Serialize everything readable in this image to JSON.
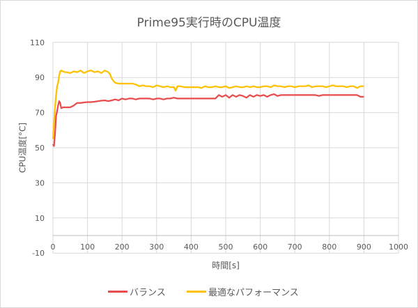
{
  "chart_data": {
    "type": "line",
    "title": "Prime95実行時のCPU温度",
    "xlabel": "時間[s]",
    "ylabel": "CPU温度[°C]",
    "xlim": [
      0,
      1000
    ],
    "ylim": [
      -10,
      110
    ],
    "x_ticks": [
      0,
      100,
      200,
      300,
      400,
      500,
      600,
      700,
      800,
      900,
      1000
    ],
    "y_ticks": [
      -10,
      10,
      30,
      50,
      70,
      90,
      110
    ],
    "x_axis_crosses_y": 0,
    "grid": true,
    "legend_position": "bottom",
    "series": [
      {
        "name": "バランス",
        "color": "#e84c4c",
        "x": [
          0,
          3,
          6,
          9,
          12,
          15,
          18,
          21,
          24,
          27,
          30,
          35,
          40,
          50,
          60,
          70,
          80,
          90,
          100,
          110,
          120,
          130,
          140,
          150,
          160,
          170,
          180,
          190,
          200,
          210,
          220,
          230,
          240,
          250,
          260,
          270,
          280,
          290,
          300,
          310,
          320,
          330,
          340,
          350,
          360,
          370,
          380,
          390,
          400,
          410,
          420,
          430,
          440,
          450,
          460,
          470,
          480,
          490,
          500,
          510,
          520,
          530,
          540,
          550,
          560,
          570,
          580,
          590,
          600,
          610,
          620,
          630,
          640,
          650,
          660,
          670,
          680,
          690,
          700,
          710,
          720,
          730,
          740,
          750,
          760,
          770,
          780,
          790,
          800,
          810,
          820,
          830,
          840,
          850,
          860,
          870,
          880,
          890,
          900
        ],
        "values": [
          52,
          51,
          58,
          68,
          71,
          74,
          76.5,
          75.5,
          72.5,
          72.8,
          73,
          73,
          73,
          73,
          74,
          75.5,
          75.5,
          75.8,
          76,
          76,
          76.2,
          76.5,
          76.8,
          77,
          76.5,
          77,
          77.5,
          77,
          78,
          77.5,
          78,
          78,
          77.5,
          78,
          78,
          78,
          78,
          77.5,
          78,
          78,
          77.5,
          78,
          78,
          78.5,
          78,
          78,
          78,
          78,
          78,
          78,
          78,
          78,
          78,
          78,
          78,
          78,
          80,
          79,
          80,
          78.5,
          80,
          79,
          80,
          79.5,
          78.5,
          80,
          79,
          80,
          79.5,
          80,
          79,
          80,
          80.5,
          79.5,
          80,
          80,
          80,
          80,
          80,
          80,
          80,
          80,
          80,
          80,
          80,
          79.5,
          80,
          80,
          80,
          80,
          80,
          80,
          80,
          80,
          80,
          80,
          80,
          79,
          79
        ]
      },
      {
        "name": "最適なパフォーマンス",
        "color": "#ffc000",
        "x": [
          0,
          3,
          6,
          9,
          12,
          15,
          18,
          21,
          24,
          27,
          30,
          35,
          40,
          50,
          60,
          70,
          80,
          90,
          100,
          110,
          120,
          130,
          140,
          150,
          160,
          165,
          170,
          175,
          180,
          190,
          200,
          210,
          220,
          230,
          240,
          250,
          260,
          270,
          280,
          290,
          300,
          310,
          320,
          330,
          340,
          350,
          355,
          360,
          370,
          380,
          390,
          400,
          410,
          420,
          430,
          440,
          450,
          460,
          470,
          480,
          490,
          500,
          510,
          520,
          530,
          540,
          550,
          560,
          570,
          580,
          590,
          600,
          610,
          620,
          630,
          640,
          650,
          660,
          670,
          680,
          690,
          700,
          710,
          720,
          730,
          740,
          750,
          760,
          770,
          780,
          790,
          800,
          810,
          820,
          830,
          840,
          850,
          860,
          870,
          880,
          890,
          900
        ],
        "values": [
          55,
          64,
          73,
          80,
          85,
          87,
          91,
          93.5,
          94,
          93.5,
          93.5,
          93,
          93,
          92.5,
          93.5,
          93,
          94,
          92.5,
          93.5,
          94,
          93,
          93.5,
          92.5,
          94,
          93,
          92,
          89.5,
          88,
          87,
          86.5,
          86.5,
          86.5,
          86.5,
          86.5,
          86,
          85,
          85.5,
          85,
          85,
          84.5,
          85.5,
          85,
          84.5,
          85,
          84.5,
          84.5,
          82.5,
          85,
          85,
          84.5,
          84.5,
          84.5,
          84.5,
          84.5,
          84,
          85,
          84.5,
          84.5,
          85,
          84.5,
          84.5,
          85,
          84,
          84.5,
          85,
          84.5,
          84.5,
          85,
          84.5,
          85,
          84.5,
          84.5,
          85,
          85,
          84.5,
          85.5,
          85,
          85,
          84.5,
          85,
          85,
          84.5,
          85,
          85,
          85,
          85.5,
          84.5,
          85,
          85,
          85,
          84.5,
          85,
          85.5,
          85,
          85,
          85,
          84.5,
          85,
          85,
          84,
          85,
          85
        ]
      }
    ]
  },
  "legend": {
    "items": [
      {
        "label": "バランス",
        "color": "#e84c4c"
      },
      {
        "label": "最適なパフォーマンス",
        "color": "#ffc000"
      }
    ]
  },
  "colors": {
    "grid": "#d9d9d9",
    "text": "#595959",
    "border": "#d9d9d9"
  }
}
